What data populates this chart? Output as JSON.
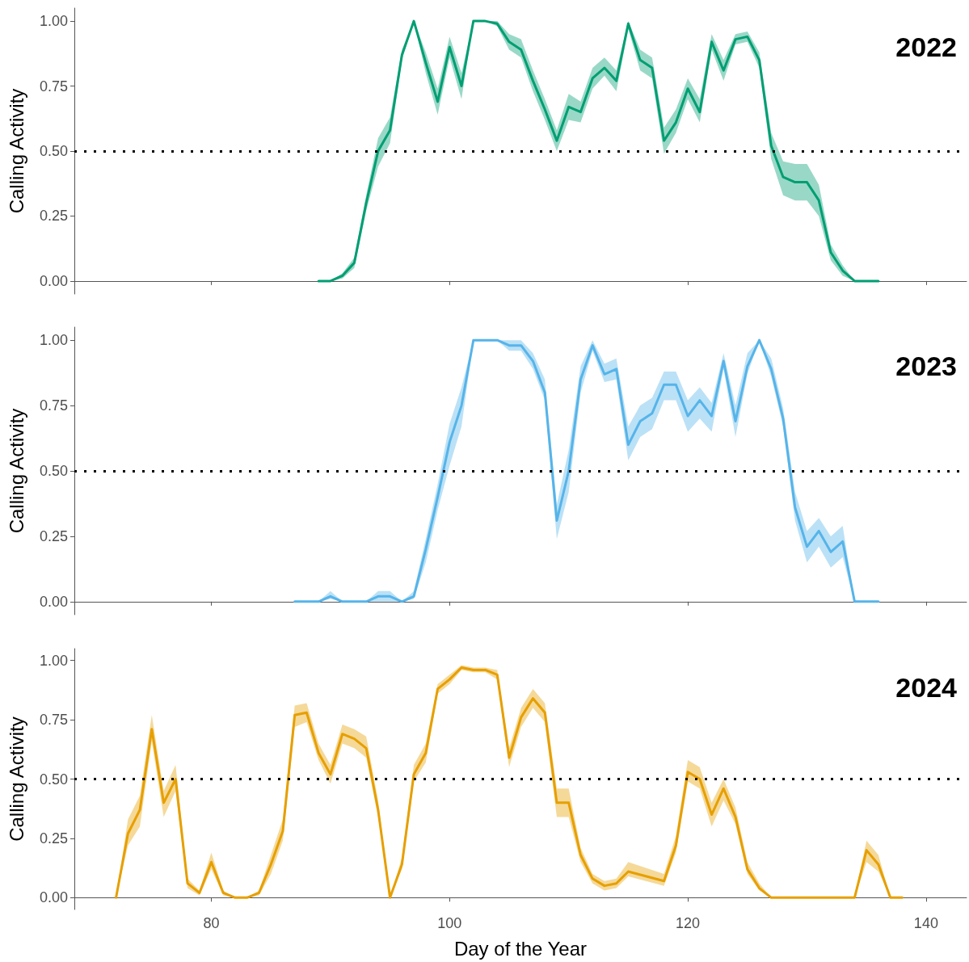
{
  "chart_data": [
    {
      "type": "line",
      "title": "2022",
      "ylabel": "Calling Activity",
      "xlim": [
        68.5,
        143.4
      ],
      "xticks": [
        {
          "value": 80,
          "label": null
        },
        {
          "value": 100,
          "label": null
        },
        {
          "value": 120,
          "label": null
        },
        {
          "value": 140,
          "label": null
        }
      ],
      "ylim": [
        -0.05,
        1.05
      ],
      "yticks": [
        {
          "value": 0,
          "label": "0.00"
        },
        {
          "value": 0.25,
          "label": "0.25"
        },
        {
          "value": 0.5,
          "label": "0.50"
        },
        {
          "value": 0.75,
          "label": "0.75"
        },
        {
          "value": 1,
          "label": "1.00"
        }
      ],
      "tick_labels": "y",
      "grid": false,
      "marker": "none",
      "line_style": "solid",
      "ref_lines": [
        {
          "axis": "y",
          "value": 0.5,
          "color": "#000000",
          "line_style": "dotted"
        }
      ],
      "series": [
        {
          "color": "#009e73",
          "x": [
            89,
            90,
            91,
            92,
            93,
            94,
            95,
            96,
            97,
            98,
            99,
            100,
            101,
            102,
            103,
            104,
            105,
            106,
            107,
            108,
            109,
            110,
            111,
            112,
            113,
            114,
            115,
            116,
            117,
            118,
            119,
            120,
            121,
            122,
            123,
            124,
            125,
            126,
            127,
            128,
            129,
            130,
            131,
            132,
            133,
            134,
            135,
            136
          ],
          "values": [
            0,
            0,
            0.02,
            0.07,
            0.3,
            0.5,
            0.58,
            0.87,
            1,
            0.84,
            0.69,
            0.9,
            0.75,
            1,
            1,
            0.99,
            0.92,
            0.89,
            0.77,
            0.66,
            0.54,
            0.67,
            0.65,
            0.78,
            0.82,
            0.77,
            0.99,
            0.85,
            0.82,
            0.54,
            0.61,
            0.74,
            0.65,
            0.92,
            0.81,
            0.93,
            0.94,
            0.85,
            0.52,
            0.4,
            0.38,
            0.38,
            0.31,
            0.11,
            0.04,
            0,
            0,
            0
          ],
          "lower": [
            0,
            0,
            0.01,
            0.05,
            0.27,
            0.44,
            0.53,
            0.85,
            1,
            0.8,
            0.64,
            0.86,
            0.7,
            1,
            1,
            0.98,
            0.89,
            0.86,
            0.73,
            0.62,
            0.5,
            0.62,
            0.61,
            0.74,
            0.79,
            0.73,
            0.97,
            0.81,
            0.78,
            0.49,
            0.57,
            0.7,
            0.61,
            0.89,
            0.77,
            0.91,
            0.92,
            0.82,
            0.47,
            0.33,
            0.31,
            0.31,
            0.25,
            0.08,
            0.02,
            0,
            0,
            0
          ],
          "upper": [
            0,
            0,
            0.03,
            0.09,
            0.33,
            0.55,
            0.63,
            0.89,
            1,
            0.88,
            0.74,
            0.94,
            0.8,
            1,
            1,
            1,
            0.95,
            0.93,
            0.81,
            0.7,
            0.58,
            0.72,
            0.69,
            0.82,
            0.86,
            0.81,
            1,
            0.89,
            0.86,
            0.59,
            0.66,
            0.78,
            0.7,
            0.95,
            0.85,
            0.95,
            0.96,
            0.88,
            0.57,
            0.46,
            0.45,
            0.45,
            0.37,
            0.14,
            0.06,
            0,
            0,
            0
          ]
        }
      ]
    },
    {
      "type": "line",
      "title": "2023",
      "ylabel": "Calling Activity",
      "xlim": [
        68.5,
        143.4
      ],
      "xticks": [
        {
          "value": 80,
          "label": null
        },
        {
          "value": 100,
          "label": null
        },
        {
          "value": 120,
          "label": null
        },
        {
          "value": 140,
          "label": null
        }
      ],
      "ylim": [
        -0.05,
        1.05
      ],
      "yticks": [
        {
          "value": 0,
          "label": "0.00"
        },
        {
          "value": 0.25,
          "label": "0.25"
        },
        {
          "value": 0.5,
          "label": "0.50"
        },
        {
          "value": 0.75,
          "label": "0.75"
        },
        {
          "value": 1,
          "label": "1.00"
        }
      ],
      "tick_labels": "y",
      "grid": false,
      "marker": "none",
      "line_style": "solid",
      "ref_lines": [
        {
          "axis": "y",
          "value": 0.5,
          "color": "#000000",
          "line_style": "dotted"
        }
      ],
      "series": [
        {
          "color": "#56b4e9",
          "x": [
            87,
            88,
            89,
            90,
            91,
            92,
            93,
            94,
            95,
            96,
            97,
            98,
            99,
            100,
            101,
            102,
            103,
            104,
            105,
            106,
            107,
            108,
            109,
            110,
            111,
            112,
            113,
            114,
            115,
            116,
            117,
            118,
            119,
            120,
            121,
            122,
            123,
            124,
            125,
            126,
            127,
            128,
            129,
            130,
            131,
            132,
            133,
            134,
            135,
            136
          ],
          "values": [
            0,
            0,
            0,
            0.02,
            0,
            0,
            0,
            0.02,
            0.02,
            0,
            0.02,
            0.2,
            0.4,
            0.61,
            0.75,
            1,
            1,
            1,
            0.98,
            0.98,
            0.92,
            0.8,
            0.31,
            0.5,
            0.85,
            0.98,
            0.87,
            0.89,
            0.6,
            0.69,
            0.72,
            0.83,
            0.83,
            0.71,
            0.77,
            0.71,
            0.92,
            0.69,
            0.9,
            1,
            0.89,
            0.7,
            0.36,
            0.21,
            0.27,
            0.19,
            0.23,
            0,
            0,
            0
          ],
          "lower": [
            0,
            0,
            0,
            0.01,
            0,
            0,
            0,
            0,
            0,
            0,
            0.01,
            0.15,
            0.35,
            0.52,
            0.67,
            1,
            1,
            1,
            0.96,
            0.96,
            0.89,
            0.77,
            0.24,
            0.42,
            0.8,
            0.96,
            0.84,
            0.85,
            0.54,
            0.63,
            0.66,
            0.77,
            0.77,
            0.65,
            0.7,
            0.65,
            0.89,
            0.63,
            0.87,
            1,
            0.86,
            0.67,
            0.31,
            0.15,
            0.21,
            0.13,
            0.17,
            0,
            0,
            0
          ],
          "upper": [
            0,
            0,
            0,
            0.04,
            0,
            0,
            0,
            0.04,
            0.04,
            0,
            0.04,
            0.24,
            0.45,
            0.68,
            0.82,
            1,
            1,
            1,
            1,
            1,
            0.95,
            0.85,
            0.37,
            0.58,
            0.9,
            1,
            0.91,
            0.93,
            0.67,
            0.75,
            0.78,
            0.88,
            0.88,
            0.77,
            0.82,
            0.76,
            0.95,
            0.75,
            0.95,
            1,
            0.93,
            0.74,
            0.42,
            0.27,
            0.32,
            0.25,
            0.29,
            0,
            0,
            0
          ]
        }
      ]
    },
    {
      "type": "line",
      "title": "2024",
      "xlabel": "Day of the Year",
      "ylabel": "Calling Activity",
      "xlim": [
        68.5,
        143.4
      ],
      "xticks": [
        80,
        100,
        120,
        140
      ],
      "ylim": [
        -0.05,
        1.05
      ],
      "yticks": [
        {
          "value": 0,
          "label": "0.00"
        },
        {
          "value": 0.25,
          "label": "0.25"
        },
        {
          "value": 0.5,
          "label": "0.50"
        },
        {
          "value": 0.75,
          "label": "0.75"
        },
        {
          "value": 1,
          "label": "1.00"
        }
      ],
      "grid": false,
      "marker": "none",
      "line_style": "solid",
      "ref_lines": [
        {
          "axis": "y",
          "value": 0.5,
          "color": "#000000",
          "line_style": "dotted"
        }
      ],
      "series": [
        {
          "color": "#e69f00",
          "x": [
            72,
            73,
            74,
            75,
            76,
            77,
            78,
            79,
            80,
            81,
            82,
            83,
            84,
            85,
            86,
            87,
            88,
            89,
            90,
            91,
            92,
            93,
            94,
            95,
            96,
            97,
            98,
            99,
            100,
            101,
            102,
            103,
            104,
            105,
            106,
            107,
            108,
            109,
            110,
            111,
            112,
            113,
            114,
            115,
            118,
            119,
            120,
            121,
            122,
            123,
            124,
            125,
            126,
            127,
            128,
            129,
            130,
            131,
            132,
            133,
            134,
            135,
            136,
            137,
            138
          ],
          "values": [
            0,
            0.27,
            0.37,
            0.71,
            0.4,
            0.5,
            0.06,
            0.02,
            0.15,
            0.02,
            0,
            0,
            0.02,
            0.14,
            0.28,
            0.77,
            0.78,
            0.61,
            0.52,
            0.69,
            0.67,
            0.63,
            0.37,
            0,
            0.14,
            0.52,
            0.61,
            0.88,
            0.92,
            0.97,
            0.96,
            0.96,
            0.94,
            0.59,
            0.76,
            0.84,
            0.78,
            0.4,
            0.4,
            0.18,
            0.08,
            0.05,
            0.06,
            0.11,
            0.07,
            0.22,
            0.53,
            0.5,
            0.35,
            0.46,
            0.34,
            0.12,
            0.04,
            0,
            0,
            0,
            0,
            0,
            0,
            0,
            0,
            0.2,
            0.14,
            0,
            0
          ],
          "lower": [
            0,
            0.22,
            0.3,
            0.66,
            0.34,
            0.45,
            0.04,
            0.01,
            0.12,
            0.01,
            0,
            0,
            0.01,
            0.1,
            0.24,
            0.72,
            0.74,
            0.58,
            0.48,
            0.65,
            0.63,
            0.59,
            0.34,
            0,
            0.12,
            0.49,
            0.57,
            0.86,
            0.9,
            0.96,
            0.95,
            0.95,
            0.92,
            0.55,
            0.72,
            0.8,
            0.74,
            0.34,
            0.34,
            0.15,
            0.06,
            0.03,
            0.04,
            0.09,
            0.05,
            0.19,
            0.49,
            0.46,
            0.3,
            0.41,
            0.31,
            0.1,
            0.03,
            0,
            0,
            0,
            0,
            0,
            0,
            0,
            0,
            0.15,
            0.11,
            0,
            0
          ],
          "upper": [
            0,
            0.33,
            0.43,
            0.77,
            0.45,
            0.56,
            0.08,
            0.03,
            0.19,
            0.03,
            0,
            0,
            0.03,
            0.18,
            0.33,
            0.81,
            0.82,
            0.65,
            0.56,
            0.73,
            0.71,
            0.68,
            0.41,
            0,
            0.17,
            0.56,
            0.65,
            0.9,
            0.94,
            0.98,
            0.97,
            0.97,
            0.96,
            0.63,
            0.8,
            0.88,
            0.82,
            0.46,
            0.46,
            0.21,
            0.1,
            0.07,
            0.08,
            0.15,
            0.1,
            0.26,
            0.58,
            0.55,
            0.4,
            0.5,
            0.38,
            0.15,
            0.06,
            0,
            0,
            0,
            0,
            0,
            0,
            0,
            0,
            0.24,
            0.18,
            0,
            0
          ]
        }
      ]
    }
  ]
}
